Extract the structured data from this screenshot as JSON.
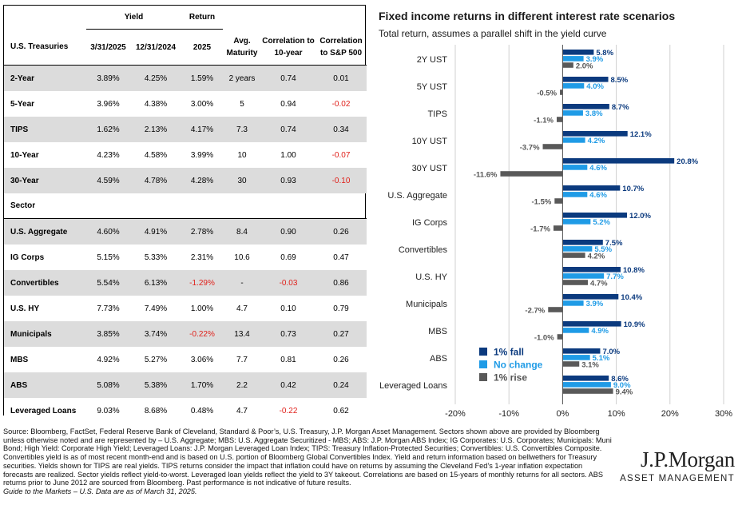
{
  "table": {
    "group_headers": {
      "yield": "Yield",
      "return": "Return"
    },
    "col_headers": [
      "U.S. Treasuries",
      "3/31/2025",
      "12/31/2024",
      "2025",
      "Avg. Maturity",
      "Correlation to 10-year",
      "Correlation to S&P 500"
    ],
    "treasuries": [
      {
        "name": "2-Year",
        "y1": "3.89%",
        "y2": "4.25%",
        "ret": "1.59%",
        "mat": "2 years",
        "c10": "0.74",
        "csp": "0.01"
      },
      {
        "name": "5-Year",
        "y1": "3.96%",
        "y2": "4.38%",
        "ret": "3.00%",
        "mat": "5",
        "c10": "0.94",
        "csp": "-0.02"
      },
      {
        "name": "TIPS",
        "y1": "1.62%",
        "y2": "2.13%",
        "ret": "4.17%",
        "mat": "7.3",
        "c10": "0.74",
        "csp": "0.34"
      },
      {
        "name": "10-Year",
        "y1": "4.23%",
        "y2": "4.58%",
        "ret": "3.99%",
        "mat": "10",
        "c10": "1.00",
        "csp": "-0.07"
      },
      {
        "name": "30-Year",
        "y1": "4.59%",
        "y2": "4.78%",
        "ret": "4.28%",
        "mat": "30",
        "c10": "0.93",
        "csp": "-0.10"
      }
    ],
    "sector_label": "Sector",
    "sectors": [
      {
        "name": "U.S. Aggregate",
        "y1": "4.60%",
        "y2": "4.91%",
        "ret": "2.78%",
        "mat": "8.4",
        "c10": "0.90",
        "csp": "0.26"
      },
      {
        "name": "IG Corps",
        "y1": "5.15%",
        "y2": "5.33%",
        "ret": "2.31%",
        "mat": "10.6",
        "c10": "0.69",
        "csp": "0.47"
      },
      {
        "name": "Convertibles",
        "y1": "5.54%",
        "y2": "6.13%",
        "ret": "-1.29%",
        "mat": "-",
        "c10": "-0.03",
        "csp": "0.86"
      },
      {
        "name": "U.S. HY",
        "y1": "7.73%",
        "y2": "7.49%",
        "ret": "1.00%",
        "mat": "4.7",
        "c10": "0.10",
        "csp": "0.79"
      },
      {
        "name": "Municipals",
        "y1": "3.85%",
        "y2": "3.74%",
        "ret": "-0.22%",
        "mat": "13.4",
        "c10": "0.73",
        "csp": "0.27"
      },
      {
        "name": "MBS",
        "y1": "4.92%",
        "y2": "5.27%",
        "ret": "3.06%",
        "mat": "7.7",
        "c10": "0.81",
        "csp": "0.26"
      },
      {
        "name": "ABS",
        "y1": "5.08%",
        "y2": "5.38%",
        "ret": "1.70%",
        "mat": "2.2",
        "c10": "0.42",
        "csp": "0.24"
      },
      {
        "name": "Leveraged Loans",
        "y1": "9.03%",
        "y2": "8.68%",
        "ret": "0.48%",
        "mat": "4.7",
        "c10": "-0.22",
        "csp": "0.62"
      }
    ]
  },
  "chart_data": {
    "type": "bar",
    "orientation": "horizontal",
    "title": "Fixed income returns in different interest rate scenarios",
    "subtitle": "Total return, assumes a parallel shift in the yield curve",
    "categories": [
      "2Y UST",
      "5Y UST",
      "TIPS",
      "10Y UST",
      "30Y UST",
      "U.S. Aggregate",
      "IG Corps",
      "Convertibles",
      "U.S. HY",
      "Municipals",
      "MBS",
      "ABS",
      "Leveraged Loans"
    ],
    "series": [
      {
        "name": "1% fall",
        "color": "#0b3a7e",
        "values": [
          5.8,
          8.5,
          8.7,
          12.1,
          20.8,
          10.7,
          12.0,
          7.5,
          10.8,
          10.4,
          10.9,
          7.0,
          8.6
        ]
      },
      {
        "name": "No change",
        "color": "#1f9be6",
        "values": [
          3.9,
          4.0,
          3.8,
          4.2,
          4.6,
          4.6,
          5.2,
          5.5,
          7.7,
          3.9,
          4.9,
          5.1,
          9.0
        ]
      },
      {
        "name": "1% rise",
        "color": "#595959",
        "values": [
          2.0,
          -0.5,
          -1.1,
          -3.7,
          -11.6,
          -1.5,
          -1.7,
          4.2,
          4.7,
          -2.7,
          -1.0,
          3.1,
          9.4
        ]
      }
    ],
    "xlim": [
      -20,
      30
    ],
    "xticks": [
      -20,
      -10,
      0,
      10,
      20,
      30
    ],
    "xlabel": "",
    "ylabel": "",
    "legend": "lower-right"
  },
  "footer": {
    "source": "Source: Bloomberg, FactSet, Federal Reserve Bank of Cleveland, Standard & Poor’s, U.S. Treasury, J.P. Morgan Asset Management. Sectors shown above are provided by Bloomberg unless otherwise noted and are represented by – U.S. Aggregate; MBS: U.S. Aggregate Securitized - MBS; ABS: J.P. Morgan ABS Index; IG Corporates: U.S. Corporates; Municipals: Muni Bond; High Yield: Corporate High Yield; Leveraged Loans: J.P. Morgan Leveraged Loan Index; TIPS: Treasury Inflation-Protected Securities; Convertibles: U.S. Convertibles Composite. Convertibles yield is as of most recent month-end and is based on U.S. portion of Bloomberg Global Convertibles Index. Yield and return information based on bellwethers for Treasury securities. Yields shown for TIPS are real yields. TIPS returns consider the impact that inflation could have on returns by assuming the Cleveland Fed’s 1-year inflation expectation forecasts are realized. Sector yields reflect yield-to-worst. Leveraged loan yields reflect the yield to 3Y takeout. Correlations are based on 15-years of monthly returns for all sectors. ABS returns prior to June 2012 are sourced from Bloomberg. Past performance is not indicative of future results.",
    "gtm": "Guide to the Markets – U.S. Data are as of March 31, 2025.",
    "logo_line1": "J.P.Morgan",
    "logo_line2": "ASSET MANAGEMENT"
  }
}
